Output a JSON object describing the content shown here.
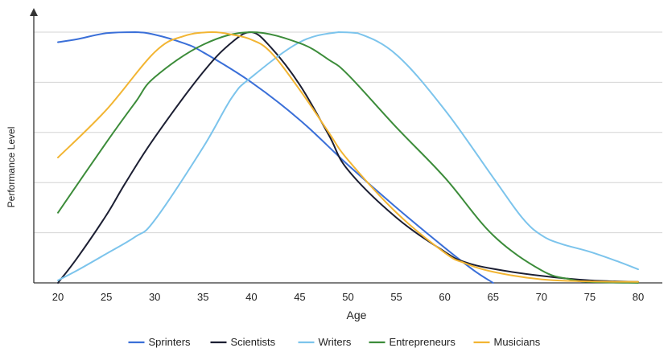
{
  "chart_data": {
    "type": "line",
    "xlabel": "Age",
    "ylabel": "Performance Level",
    "x": [
      20,
      25,
      30,
      35,
      40,
      45,
      50,
      55,
      60,
      65,
      70,
      75,
      80
    ],
    "xlim": [
      17.5,
      82.5
    ],
    "ylim": [
      0,
      5
    ],
    "grid": "horizontal",
    "y_ticks_labeled": false,
    "legend": "bottom",
    "series": [
      {
        "name": "Sprinters",
        "color": "#3a6fd8",
        "points": [
          [
            20,
            4.8
          ],
          [
            22,
            4.86
          ],
          [
            25,
            4.98
          ],
          [
            28,
            5.0
          ],
          [
            30,
            4.95
          ],
          [
            33,
            4.78
          ],
          [
            35,
            4.6
          ],
          [
            40,
            4.0
          ],
          [
            45,
            3.25
          ],
          [
            50,
            2.35
          ],
          [
            55,
            1.5
          ],
          [
            60,
            0.7
          ],
          [
            63,
            0.25
          ],
          [
            65,
            0.0
          ]
        ]
      },
      {
        "name": "Scientists",
        "color": "#1c1f33",
        "points": [
          [
            20,
            0.0
          ],
          [
            22,
            0.5
          ],
          [
            25,
            1.35
          ],
          [
            27,
            2.0
          ],
          [
            30,
            2.9
          ],
          [
            35,
            4.2
          ],
          [
            38,
            4.8
          ],
          [
            40,
            5.0
          ],
          [
            42,
            4.7
          ],
          [
            45,
            3.95
          ],
          [
            48,
            2.95
          ],
          [
            50,
            2.25
          ],
          [
            55,
            1.3
          ],
          [
            60,
            0.62
          ],
          [
            62,
            0.42
          ],
          [
            65,
            0.28
          ],
          [
            70,
            0.14
          ],
          [
            75,
            0.05
          ],
          [
            80,
            0.02
          ]
        ]
      },
      {
        "name": "Writers",
        "color": "#7cc4ec",
        "points": [
          [
            20,
            0.05
          ],
          [
            22,
            0.25
          ],
          [
            25,
            0.58
          ],
          [
            28,
            0.92
          ],
          [
            30,
            1.25
          ],
          [
            35,
            2.7
          ],
          [
            38,
            3.7
          ],
          [
            40,
            4.1
          ],
          [
            45,
            4.8
          ],
          [
            49,
            5.0
          ],
          [
            51,
            4.98
          ],
          [
            55,
            4.55
          ],
          [
            60,
            3.45
          ],
          [
            65,
            2.1
          ],
          [
            68,
            1.3
          ],
          [
            70,
            0.95
          ],
          [
            72,
            0.78
          ],
          [
            75,
            0.62
          ],
          [
            78,
            0.42
          ],
          [
            80,
            0.27
          ]
        ]
      },
      {
        "name": "Entrepreneurs",
        "color": "#3c8c3a",
        "points": [
          [
            20,
            1.4
          ],
          [
            25,
            2.8
          ],
          [
            28,
            3.6
          ],
          [
            30,
            4.1
          ],
          [
            35,
            4.75
          ],
          [
            40,
            5.0
          ],
          [
            45,
            4.78
          ],
          [
            48,
            4.45
          ],
          [
            50,
            4.15
          ],
          [
            55,
            3.1
          ],
          [
            60,
            2.1
          ],
          [
            65,
            0.95
          ],
          [
            70,
            0.25
          ],
          [
            73,
            0.07
          ],
          [
            75,
            0.02
          ],
          [
            80,
            0.0
          ]
        ]
      },
      {
        "name": "Musicians",
        "color": "#f2b533",
        "points": [
          [
            20,
            2.5
          ],
          [
            25,
            3.45
          ],
          [
            30,
            4.6
          ],
          [
            33,
            4.92
          ],
          [
            36,
            5.0
          ],
          [
            38,
            4.95
          ],
          [
            40,
            4.85
          ],
          [
            42,
            4.6
          ],
          [
            45,
            3.85
          ],
          [
            48,
            3.0
          ],
          [
            50,
            2.45
          ],
          [
            55,
            1.4
          ],
          [
            60,
            0.6
          ],
          [
            62,
            0.4
          ],
          [
            65,
            0.22
          ],
          [
            70,
            0.07
          ],
          [
            75,
            0.03
          ],
          [
            80,
            0.02
          ]
        ]
      }
    ]
  }
}
